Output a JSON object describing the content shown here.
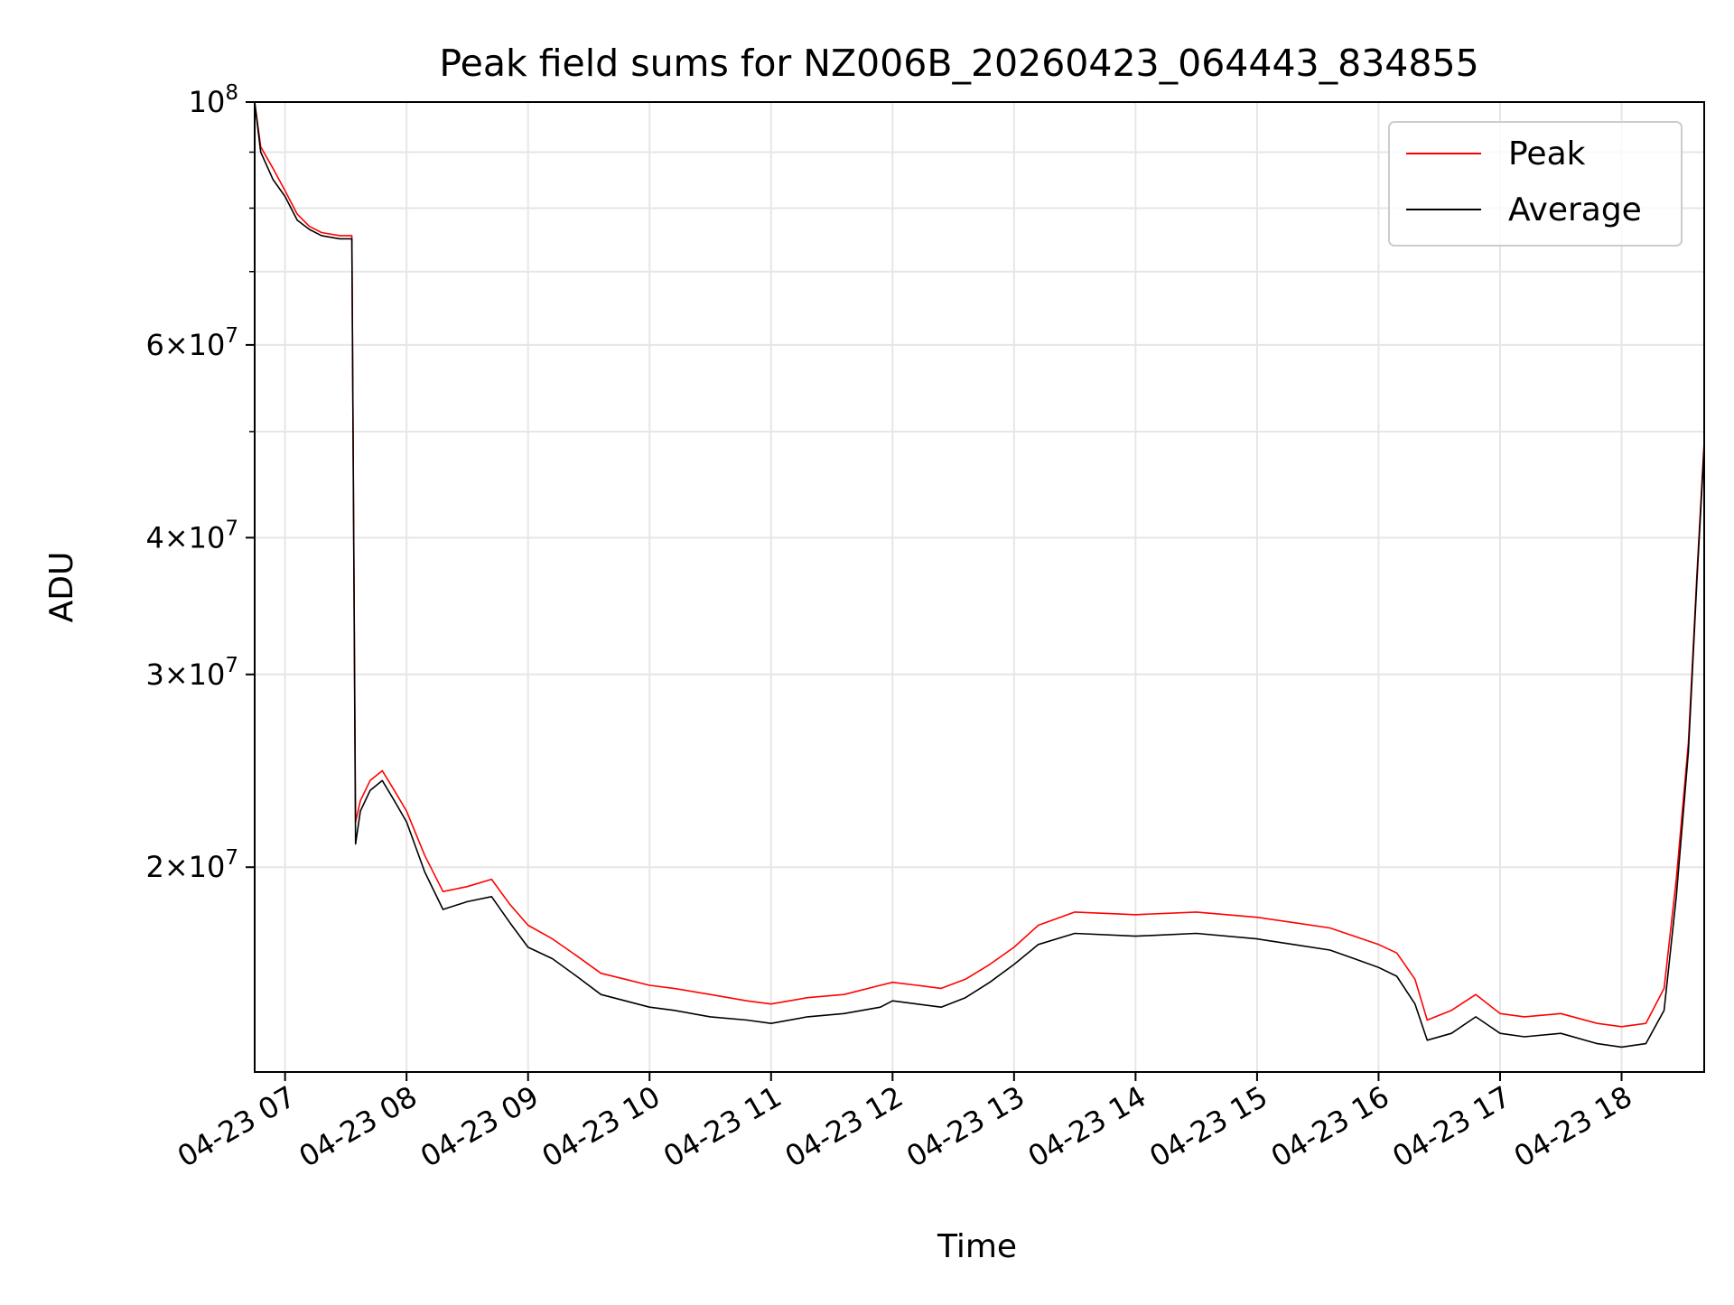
{
  "chart_data": {
    "type": "line",
    "title": "Peak field sums for NZ006B_20260423_064443_834855",
    "xlabel": "Time",
    "ylabel": "ADU",
    "x_unit": "hours (clock time, 2026-04-23)",
    "xlim": [
      6.75,
      18.68
    ],
    "ylim": [
      13000000,
      100000000
    ],
    "yscale": "log",
    "grid": true,
    "legend_position": "top-right",
    "x_ticks": [
      {
        "value": 7,
        "label": "04-23 07"
      },
      {
        "value": 8,
        "label": "04-23 08"
      },
      {
        "value": 9,
        "label": "04-23 09"
      },
      {
        "value": 10,
        "label": "04-23 10"
      },
      {
        "value": 11,
        "label": "04-23 11"
      },
      {
        "value": 12,
        "label": "04-23 12"
      },
      {
        "value": 13,
        "label": "04-23 13"
      },
      {
        "value": 14,
        "label": "04-23 14"
      },
      {
        "value": 15,
        "label": "04-23 15"
      },
      {
        "value": 16,
        "label": "04-23 16"
      },
      {
        "value": 17,
        "label": "04-23 17"
      },
      {
        "value": 18,
        "label": "04-23 18"
      }
    ],
    "y_ticks": [
      {
        "value": 100000000,
        "mantissa": "",
        "exponent": "8"
      },
      {
        "value": 60000000,
        "mantissa": "6",
        "exponent": "7"
      },
      {
        "value": 40000000,
        "mantissa": "4",
        "exponent": "7"
      },
      {
        "value": 30000000,
        "mantissa": "3",
        "exponent": "7"
      },
      {
        "value": 20000000,
        "mantissa": "2",
        "exponent": "7"
      }
    ],
    "y_minor_ticks": [
      90000000,
      80000000,
      70000000,
      50000000
    ],
    "series": [
      {
        "name": "Peak",
        "color": "#ff0000",
        "x": [
          6.75,
          6.8,
          6.9,
          7.0,
          7.1,
          7.2,
          7.3,
          7.45,
          7.55,
          7.58,
          7.62,
          7.7,
          7.8,
          7.9,
          8.0,
          8.15,
          8.3,
          8.5,
          8.7,
          8.85,
          9.0,
          9.2,
          9.4,
          9.6,
          9.8,
          10.0,
          10.2,
          10.5,
          10.8,
          11.0,
          11.3,
          11.6,
          11.9,
          12.0,
          12.2,
          12.4,
          12.6,
          12.8,
          13.0,
          13.2,
          13.5,
          14.0,
          14.5,
          15.0,
          15.3,
          15.6,
          15.8,
          16.0,
          16.15,
          16.3,
          16.4,
          16.6,
          16.8,
          17.0,
          17.2,
          17.5,
          17.8,
          18.0,
          18.2,
          18.35,
          18.45,
          18.55,
          18.62,
          18.68
        ],
        "y": [
          100000000,
          91000000,
          87000000,
          83000000,
          79000000,
          77000000,
          76000000,
          75500000,
          75500000,
          22000000,
          23000000,
          24000000,
          24500000,
          23500000,
          22500000,
          20500000,
          19000000,
          19200000,
          19500000,
          18500000,
          17700000,
          17200000,
          16600000,
          16000000,
          15800000,
          15600000,
          15500000,
          15300000,
          15100000,
          15000000,
          15200000,
          15300000,
          15600000,
          15700000,
          15600000,
          15500000,
          15800000,
          16300000,
          16900000,
          17700000,
          18200000,
          18100000,
          18200000,
          18000000,
          17800000,
          17600000,
          17300000,
          17000000,
          16700000,
          15800000,
          14500000,
          14800000,
          15300000,
          14700000,
          14600000,
          14700000,
          14400000,
          14300000,
          14400000,
          15500000,
          19500000,
          26000000,
          37000000,
          49000000
        ]
      },
      {
        "name": "Average",
        "color": "#000000",
        "x": [
          6.75,
          6.8,
          6.9,
          7.0,
          7.1,
          7.2,
          7.3,
          7.45,
          7.55,
          7.58,
          7.62,
          7.7,
          7.8,
          7.9,
          8.0,
          8.15,
          8.3,
          8.5,
          8.7,
          8.85,
          9.0,
          9.2,
          9.4,
          9.6,
          9.8,
          10.0,
          10.2,
          10.5,
          10.8,
          11.0,
          11.3,
          11.6,
          11.9,
          12.0,
          12.2,
          12.4,
          12.6,
          12.8,
          13.0,
          13.2,
          13.5,
          14.0,
          14.5,
          15.0,
          15.3,
          15.6,
          15.8,
          16.0,
          16.15,
          16.3,
          16.4,
          16.6,
          16.8,
          17.0,
          17.2,
          17.5,
          17.8,
          18.0,
          18.2,
          18.35,
          18.45,
          18.55,
          18.62,
          18.68
        ],
        "y": [
          100000000,
          90000000,
          85000000,
          82000000,
          78000000,
          76500000,
          75500000,
          75000000,
          75000000,
          21000000,
          22500000,
          23500000,
          24000000,
          23000000,
          22000000,
          19800000,
          18300000,
          18600000,
          18800000,
          17800000,
          16900000,
          16500000,
          15900000,
          15300000,
          15100000,
          14900000,
          14800000,
          14600000,
          14500000,
          14400000,
          14600000,
          14700000,
          14900000,
          15100000,
          15000000,
          14900000,
          15200000,
          15700000,
          16300000,
          17000000,
          17400000,
          17300000,
          17400000,
          17200000,
          17000000,
          16800000,
          16500000,
          16200000,
          15900000,
          15000000,
          13900000,
          14100000,
          14600000,
          14100000,
          14000000,
          14100000,
          13800000,
          13700000,
          13800000,
          14800000,
          18800000,
          25500000,
          36500000,
          48500000
        ]
      }
    ]
  }
}
